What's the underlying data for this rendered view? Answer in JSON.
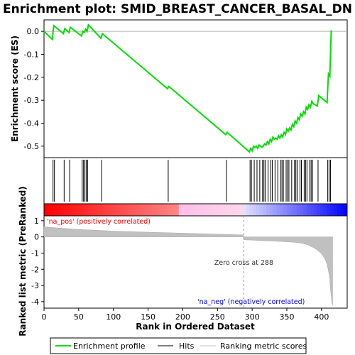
{
  "chart_data": {
    "type": "line",
    "title": "Enrichment plot: SMID_BREAST_CANCER_BASAL_DN",
    "x_axis": {
      "label": "Rank in Ordered Dataset",
      "range": [
        0,
        437
      ],
      "ticks": [
        0,
        50,
        100,
        150,
        200,
        250,
        300,
        350,
        400
      ]
    },
    "es_panel": {
      "ylabel": "Enrichment score (ES)",
      "ylim": [
        -0.55,
        0.05
      ],
      "ticks": [
        0.0,
        -0.1,
        -0.2,
        -0.3,
        -0.4,
        -0.5
      ],
      "tick_labels": [
        "0.0",
        "-0.1",
        "-0.2",
        "-0.3",
        "-0.4",
        "-0.5"
      ],
      "zero_line": true,
      "series": {
        "name": "Enrichment profile",
        "color": "#00dd00",
        "x": [
          0,
          12,
          14,
          28,
          30,
          36,
          38,
          54,
          56,
          58,
          60,
          62,
          64,
          82,
          84,
          178,
          180,
          262,
          264,
          296,
          298,
          300,
          302,
          304,
          306,
          308,
          310,
          312,
          314,
          316,
          318,
          320,
          322,
          324,
          326,
          328,
          330,
          332,
          334,
          336,
          338,
          340,
          342,
          344,
          346,
          348,
          350,
          352,
          354,
          356,
          358,
          360,
          362,
          364,
          366,
          368,
          370,
          372,
          374,
          376,
          378,
          380,
          382,
          384,
          386,
          388,
          394,
          396,
          408,
          410,
          412,
          414
        ],
        "y": [
          0.0,
          -0.035,
          0.025,
          -0.01,
          0.012,
          -0.005,
          0.018,
          -0.02,
          0.0,
          -0.005,
          0.01,
          0.0,
          0.028,
          -0.03,
          -0.01,
          -0.25,
          -0.24,
          -0.45,
          -0.44,
          -0.525,
          -0.51,
          -0.52,
          -0.5,
          -0.505,
          -0.5,
          -0.51,
          -0.495,
          -0.5,
          -0.505,
          -0.5,
          -0.49,
          -0.495,
          -0.48,
          -0.49,
          -0.47,
          -0.48,
          -0.46,
          -0.47,
          -0.465,
          -0.47,
          -0.455,
          -0.465,
          -0.45,
          -0.46,
          -0.44,
          -0.45,
          -0.425,
          -0.435,
          -0.42,
          -0.43,
          -0.405,
          -0.415,
          -0.39,
          -0.4,
          -0.375,
          -0.385,
          -0.36,
          -0.37,
          -0.35,
          -0.36,
          -0.33,
          -0.34,
          -0.32,
          -0.33,
          -0.305,
          -0.315,
          -0.325,
          -0.28,
          -0.31,
          -0.185,
          -0.195,
          0.005
        ]
      }
    },
    "hits": {
      "name": "Hits",
      "positions": [
        13,
        15,
        29,
        37,
        55,
        57,
        59,
        61,
        63,
        83,
        179,
        263,
        297,
        299,
        303,
        307,
        311,
        315,
        317,
        319,
        323,
        327,
        329,
        333,
        337,
        341,
        343,
        345,
        349,
        351,
        353,
        357,
        361,
        363,
        365,
        369,
        371,
        375,
        377,
        379,
        383,
        385,
        387,
        395,
        409,
        411,
        413
      ]
    },
    "heatmap_bar": {
      "positive_color": "#ff0000",
      "negative_color": "#0000ff",
      "zero_cross": 288
    },
    "metric_panel": {
      "ylabel": "Ranked list metric (PreRanked)",
      "ylim": [
        -4.4,
        1.3
      ],
      "ticks": [
        1,
        0,
        -1,
        -2,
        -3,
        -4
      ],
      "tick_labels": [
        "1",
        "0",
        "-1",
        "-2",
        "-3",
        "-4"
      ],
      "series": {
        "name": "Ranking metric scores",
        "color": "#c0c0c0",
        "x": [
          0,
          20,
          50,
          100,
          150,
          200,
          250,
          287,
          288,
          300,
          320,
          340,
          360,
          370,
          380,
          390,
          395,
          400,
          405,
          408,
          410,
          412,
          413,
          414,
          415,
          416
        ],
        "y": [
          0.62,
          0.55,
          0.46,
          0.36,
          0.29,
          0.23,
          0.17,
          0.12,
          -0.18,
          -0.2,
          -0.24,
          -0.28,
          -0.33,
          -0.38,
          -0.48,
          -0.7,
          -0.85,
          -1.05,
          -1.35,
          -1.7,
          -2.1,
          -2.6,
          -3.3,
          -3.6,
          -4.1,
          -4.2
        ]
      },
      "annotations": {
        "positive": "'na_pos' (positively correlated)",
        "negative": "'na_neg' (negatively correlated)",
        "zero_cross": "Zero cross at 288"
      }
    },
    "legend": [
      {
        "label": "Enrichment profile",
        "color": "#00dd00"
      },
      {
        "label": "Hits",
        "color": "#000000"
      },
      {
        "label": "Ranking metric scores",
        "color": "#c0c0c0"
      }
    ],
    "legend_placement": "bottom",
    "grid": false
  },
  "colors": {
    "pos_label": "#ff0000",
    "neg_label": "#0000ff",
    "zero_cross_label": "#333333"
  }
}
